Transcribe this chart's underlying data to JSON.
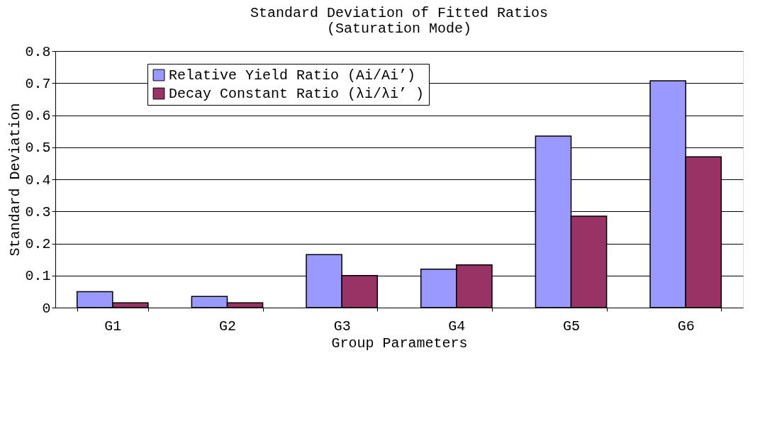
{
  "chart_data": {
    "type": "bar",
    "title": [
      "Standard Deviation of Fitted Ratios",
      "(Saturation Mode)"
    ],
    "xlabel": "Group Parameters",
    "ylabel": "Standard Deviation",
    "categories": [
      "G1",
      "G2",
      "G3",
      "G4",
      "G5",
      "G6"
    ],
    "series": [
      {
        "name": "Relative Yield Ratio (Ai/Ai’)",
        "color": "#9999ff",
        "values": [
          0.05,
          0.035,
          0.165,
          0.12,
          0.535,
          0.707
        ]
      },
      {
        "name": "Decay Constant Ratio (λi/λi’ )",
        "color": "#993366",
        "values": [
          0.015,
          0.015,
          0.1,
          0.133,
          0.285,
          0.47
        ]
      }
    ],
    "ylim": [
      0,
      0.8
    ],
    "yticks": [
      0,
      0.1,
      0.2,
      0.3,
      0.4,
      0.5,
      0.6,
      0.7,
      0.8
    ],
    "grid": "y",
    "legend": "top left"
  }
}
